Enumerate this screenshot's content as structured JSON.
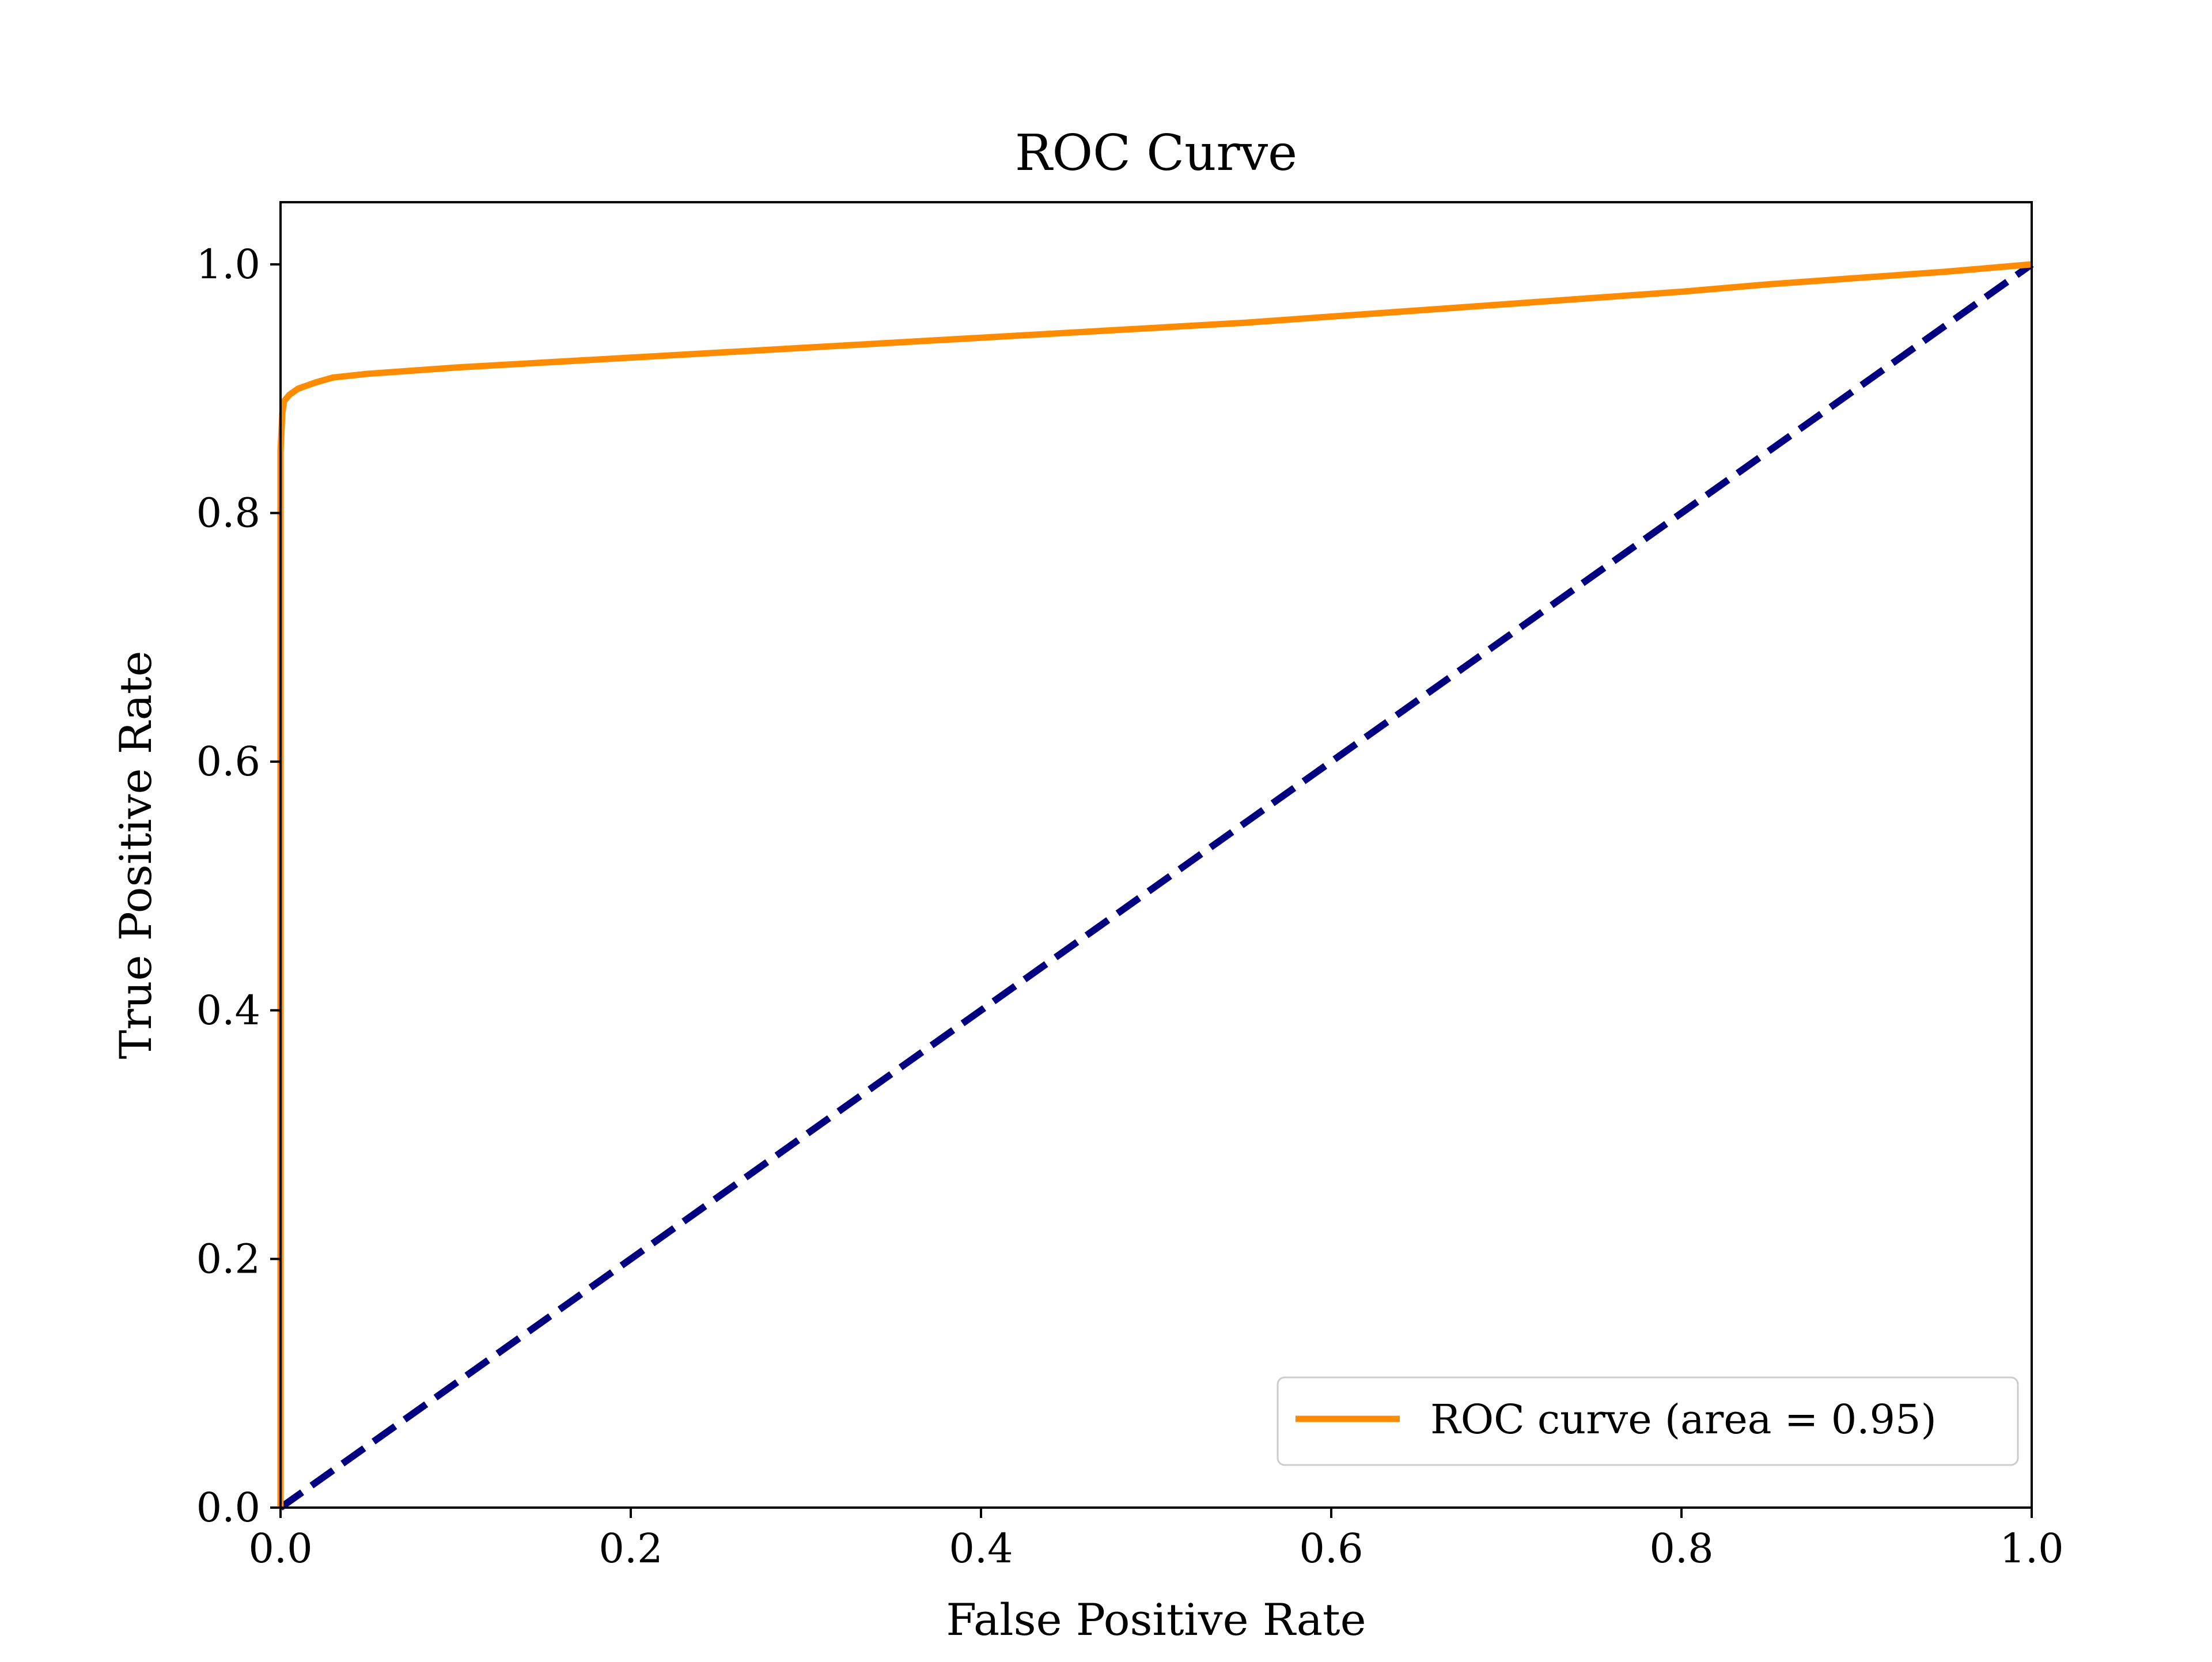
{
  "chart_data": {
    "type": "line",
    "title": "ROC Curve",
    "xlabel": "False Positive Rate",
    "ylabel": "True Positive Rate",
    "xlim": [
      0.0,
      1.0
    ],
    "ylim": [
      0.0,
      1.05
    ],
    "xticks": [
      "0.0",
      "0.2",
      "0.4",
      "0.6",
      "0.8",
      "1.0"
    ],
    "yticks": [
      "0.0",
      "0.2",
      "0.4",
      "0.6",
      "0.8",
      "1.0"
    ],
    "grid": false,
    "legend_position": "lower-right",
    "series": [
      {
        "name": "ROC curve (area = 0.95)",
        "color": "#ff8c00",
        "style": "solid",
        "x": [
          0.0,
          0.0,
          0.001,
          0.002,
          0.005,
          0.01,
          0.02,
          0.03,
          0.05,
          0.08,
          0.1,
          0.15,
          0.2,
          0.25,
          0.3,
          0.35,
          0.4,
          0.45,
          0.5,
          0.55,
          0.6,
          0.65,
          0.7,
          0.75,
          0.8,
          0.85,
          0.9,
          0.95,
          1.0
        ],
        "y": [
          0.0,
          0.85,
          0.88,
          0.89,
          0.895,
          0.9,
          0.905,
          0.909,
          0.912,
          0.915,
          0.917,
          0.921,
          0.925,
          0.929,
          0.933,
          0.937,
          0.941,
          0.945,
          0.949,
          0.953,
          0.958,
          0.963,
          0.968,
          0.973,
          0.978,
          0.984,
          0.989,
          0.994,
          1.0
        ]
      },
      {
        "color": "#000080",
        "style": "dashed",
        "x": [
          0.0,
          1.0
        ],
        "y": [
          0.0,
          1.0
        ]
      }
    ]
  }
}
